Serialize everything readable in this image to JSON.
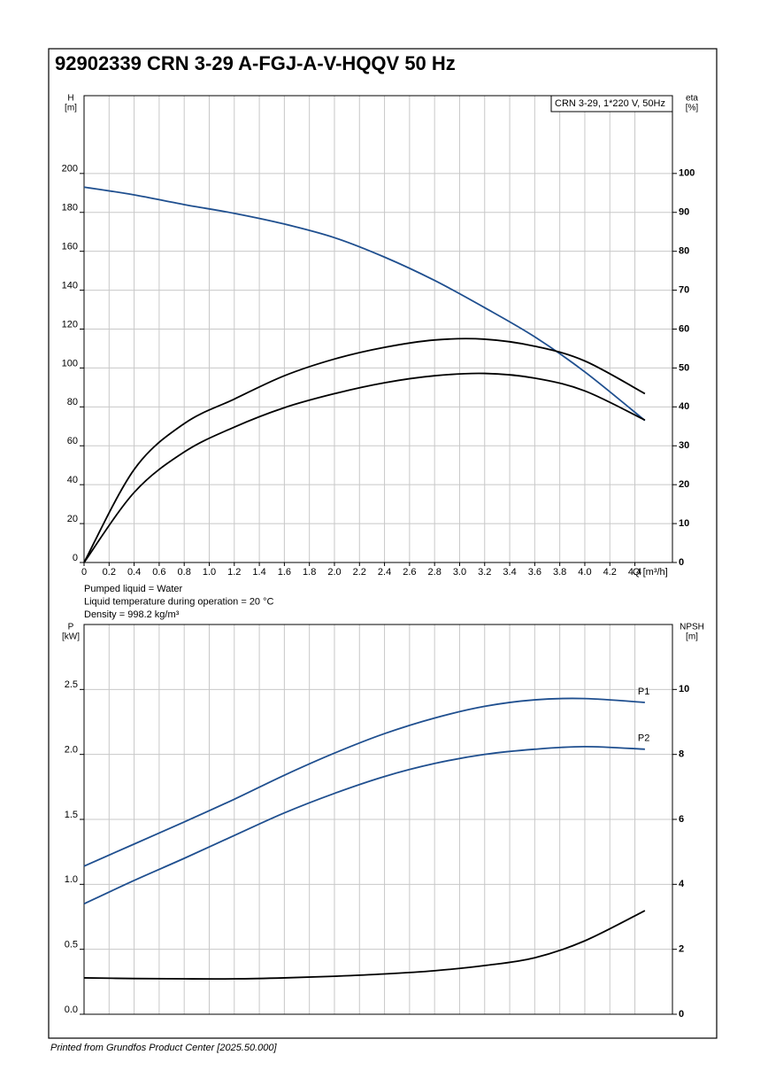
{
  "title": "92902339 CRN 3-29 A-FGJ-A-V-HQQV 50 Hz",
  "footer": "Printed from Grundfos Product Center [2025.50.000]",
  "chart_data": [
    {
      "type": "line",
      "legend_box": "CRN 3-29, 1*220 V, 50Hz",
      "y_label": "H",
      "y_unit": "[m]",
      "y2_label": "eta",
      "y2_unit": "[%]",
      "x_label": "Q [m³/h]",
      "annotations": [
        "Pumped liquid = Water",
        "Liquid temperature during operation = 20 °C",
        "Density = 998.2 kg/m³"
      ],
      "grid": true,
      "show_xtick_labels": true,
      "xlim": [
        0,
        4.7
      ],
      "xticks": [
        0,
        0.2,
        0.4,
        0.6,
        0.8,
        {
          "value": 1,
          "label": "1.0"
        },
        1.2,
        1.4,
        1.6,
        1.8,
        {
          "value": 2,
          "label": "2.0"
        },
        2.2,
        2.4,
        2.6,
        2.8,
        {
          "value": 3,
          "label": "3.0"
        },
        3.2,
        3.4,
        3.6,
        3.8,
        {
          "value": 4,
          "label": "4.0"
        },
        4.2,
        4.4
      ],
      "ylim": [
        0,
        240
      ],
      "yticks": [
        0,
        20,
        40,
        60,
        80,
        100,
        120,
        140,
        160,
        180,
        200
      ],
      "y2lim": [
        0,
        120
      ],
      "y2ticks": [
        0,
        10,
        20,
        30,
        40,
        50,
        60,
        70,
        80,
        90,
        100
      ],
      "x": [
        0,
        0.4,
        0.8,
        1.2,
        1.6,
        2.0,
        2.4,
        2.8,
        3.2,
        3.6,
        4.0,
        4.48
      ],
      "series": [
        {
          "color": "#1f4f8f",
          "values": [
            193,
            189,
            184,
            179.5,
            174,
            167,
            157,
            145,
            131,
            116,
            98,
            73
          ]
        },
        {
          "color": "#000000",
          "axis": "y2",
          "values": [
            0,
            18,
            28.4,
            34.8,
            39.8,
            43.4,
            46.2,
            48.0,
            48.6,
            47.4,
            44.1,
            36.6
          ]
        },
        {
          "color": "#000000",
          "axis": "y2",
          "values": [
            0,
            23.9,
            35.7,
            42,
            48,
            52.3,
            55.3,
            57.2,
            57.4,
            55.6,
            51.8,
            43.4
          ]
        }
      ]
    },
    {
      "type": "line",
      "y_label": "P",
      "y_unit": "[kW]",
      "y2_label": "NPSH",
      "y2_unit": "[m]",
      "grid": true,
      "show_xtick_labels": false,
      "xlim": [
        0,
        4.7
      ],
      "xticks": [
        0,
        0.2,
        0.4,
        0.6,
        0.8,
        1,
        1.2,
        1.4,
        1.6,
        1.8,
        2,
        2.2,
        2.4,
        2.6,
        2.8,
        3,
        3.2,
        3.4,
        3.6,
        3.8,
        4,
        4.2,
        4.4
      ],
      "ylim": [
        0,
        3
      ],
      "yticks": [
        {
          "value": 0,
          "label": "0.0"
        },
        0.5,
        {
          "value": 1,
          "label": "1.0"
        },
        1.5,
        {
          "value": 2,
          "label": "2.0"
        },
        2.5
      ],
      "y2lim": [
        0,
        12
      ],
      "y2ticks": [
        0,
        2,
        4,
        6,
        8,
        10
      ],
      "x": [
        0,
        0.4,
        0.8,
        1.2,
        1.6,
        2.0,
        2.4,
        2.8,
        3.2,
        3.6,
        4.0,
        4.48
      ],
      "series": [
        {
          "name": "P1",
          "color": "#1f4f8f",
          "values": [
            1.14,
            1.31,
            1.48,
            1.655,
            1.84,
            2.01,
            2.16,
            2.28,
            2.37,
            2.42,
            2.43,
            2.4
          ]
        },
        {
          "name": "P2",
          "color": "#1f4f8f",
          "values": [
            0.85,
            1.03,
            1.2,
            1.376,
            1.55,
            1.7,
            1.83,
            1.93,
            2.0,
            2.04,
            2.06,
            2.04
          ]
        },
        {
          "color": "#000000",
          "axis": "y2",
          "values": [
            1.12,
            1.1,
            1.09,
            1.09,
            1.12,
            1.17,
            1.24,
            1.34,
            1.5,
            1.74,
            2.26,
            3.19
          ]
        }
      ]
    }
  ]
}
